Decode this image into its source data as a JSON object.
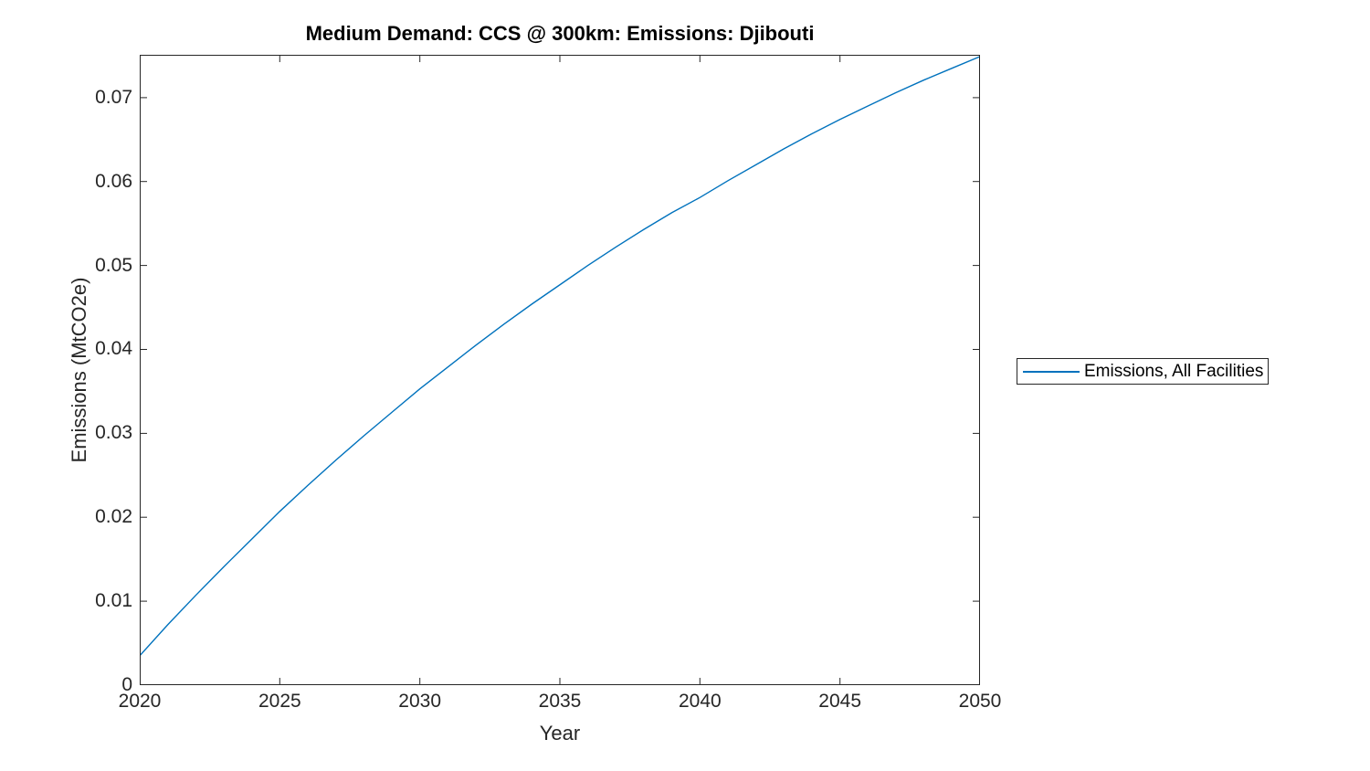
{
  "figure": {
    "background": "#ffffff"
  },
  "chart_data": {
    "type": "line",
    "title": "Medium Demand: CCS @ 300km: Emissions: Djibouti",
    "xlabel": "Year",
    "ylabel": "Emissions (MtCO2e)",
    "xlim": [
      2020,
      2050
    ],
    "ylim": [
      0,
      0.0751
    ],
    "xticks": [
      2020,
      2025,
      2030,
      2035,
      2040,
      2045,
      2050
    ],
    "xtick_labels": [
      "2020",
      "2025",
      "2030",
      "2035",
      "2040",
      "2045",
      "2050"
    ],
    "yticks": [
      0,
      0.01,
      0.02,
      0.03,
      0.04,
      0.05,
      0.06,
      0.07
    ],
    "ytick_labels": [
      "0",
      "0.01",
      "0.02",
      "0.03",
      "0.04",
      "0.05",
      "0.06",
      "0.07"
    ],
    "grid": false,
    "box": true,
    "tick_direction": "in",
    "axis_color": "#262626",
    "x": [
      2020,
      2021,
      2022,
      2023,
      2024,
      2025,
      2026,
      2027,
      2028,
      2029,
      2030,
      2031,
      2032,
      2033,
      2034,
      2035,
      2036,
      2037,
      2038,
      2039,
      2040,
      2041,
      2042,
      2043,
      2044,
      2045,
      2046,
      2047,
      2048,
      2049,
      2050
    ],
    "series": [
      {
        "name": "Emissions, All Facilities",
        "color": "#0072BD",
        "values": [
          0.0035,
          0.0072,
          0.0107,
          0.0141,
          0.0174,
          0.0207,
          0.0238,
          0.0268,
          0.0297,
          0.0325,
          0.0353,
          0.0379,
          0.0405,
          0.043,
          0.0454,
          0.0477,
          0.05,
          0.0522,
          0.0543,
          0.0563,
          0.0581,
          0.0601,
          0.062,
          0.0639,
          0.0657,
          0.0674,
          0.069,
          0.0706,
          0.0721,
          0.0735,
          0.0749
        ]
      }
    ],
    "legend": {
      "position": "right-outside",
      "entries": [
        "Emissions, All Facilities"
      ],
      "border_color": "#262626",
      "background": "#ffffff",
      "line_color": "#0072BD"
    }
  }
}
